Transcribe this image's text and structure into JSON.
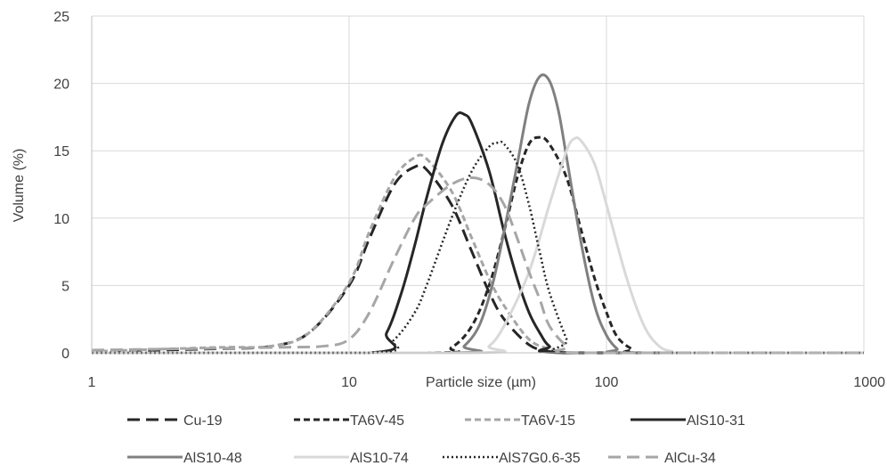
{
  "chart_data": {
    "type": "line",
    "title": "",
    "xlabel": "Particle size (µm)",
    "ylabel": "Volume (%)",
    "xscale": "log",
    "xlim": [
      1,
      1000
    ],
    "ylim": [
      0,
      25
    ],
    "xticks": [
      "1",
      "10",
      "100",
      "1000"
    ],
    "yticks": [
      "0",
      "5",
      "10",
      "15",
      "20",
      "25"
    ],
    "grid": true,
    "legend_position": "bottom",
    "series": [
      {
        "name": "Cu-19",
        "color": "#262626",
        "dash": "long-dash",
        "width": 3,
        "points": [
          [
            1,
            0.1
          ],
          [
            3,
            0.3
          ],
          [
            5,
            0.5
          ],
          [
            7,
            1.5
          ],
          [
            10,
            5
          ],
          [
            12,
            8.5
          ],
          [
            15,
            12.5
          ],
          [
            18,
            13.8
          ],
          [
            20,
            13.6
          ],
          [
            25,
            11
          ],
          [
            30,
            7.5
          ],
          [
            35,
            4.5
          ],
          [
            40,
            2.5
          ],
          [
            50,
            0.6
          ],
          [
            60,
            0.1
          ],
          [
            70,
            0
          ]
        ]
      },
      {
        "name": "TA6V-45",
        "color": "#262626",
        "dash": "dash",
        "width": 3,
        "points": [
          [
            1,
            0
          ],
          [
            20,
            0
          ],
          [
            25,
            0.4
          ],
          [
            30,
            2
          ],
          [
            35,
            5
          ],
          [
            40,
            9
          ],
          [
            45,
            13
          ],
          [
            50,
            15.5
          ],
          [
            55,
            16
          ],
          [
            60,
            15.5
          ],
          [
            70,
            13
          ],
          [
            80,
            9
          ],
          [
            90,
            5.5
          ],
          [
            100,
            3
          ],
          [
            110,
            1.2
          ],
          [
            125,
            0.3
          ],
          [
            140,
            0
          ],
          [
            1000,
            0
          ]
        ]
      },
      {
        "name": "TA6V-15",
        "color": "#a6a6a6",
        "dash": "dash",
        "width": 3,
        "points": [
          [
            1,
            0.1
          ],
          [
            3,
            0.4
          ],
          [
            5,
            0.5
          ],
          [
            7,
            1.5
          ],
          [
            10,
            5.2
          ],
          [
            12,
            9
          ],
          [
            15,
            13
          ],
          [
            18,
            14.5
          ],
          [
            20,
            14.4
          ],
          [
            25,
            12
          ],
          [
            30,
            8.5
          ],
          [
            35,
            5.5
          ],
          [
            40,
            3.5
          ],
          [
            50,
            1
          ],
          [
            60,
            0.3
          ],
          [
            70,
            0
          ]
        ]
      },
      {
        "name": "AlS10-31",
        "color": "#262626",
        "dash": "solid",
        "width": 3,
        "points": [
          [
            1,
            0
          ],
          [
            12,
            0
          ],
          [
            14,
            1.5
          ],
          [
            16,
            4.5
          ],
          [
            18,
            8
          ],
          [
            20,
            11.5
          ],
          [
            23,
            15.5
          ],
          [
            26,
            17.6
          ],
          [
            28,
            17.7
          ],
          [
            30,
            17
          ],
          [
            35,
            13.5
          ],
          [
            40,
            9
          ],
          [
            45,
            5.5
          ],
          [
            50,
            3
          ],
          [
            55,
            1.5
          ],
          [
            60,
            0.5
          ],
          [
            70,
            0
          ],
          [
            1000,
            0
          ]
        ]
      },
      {
        "name": "AlS10-48",
        "color": "#808080",
        "dash": "solid",
        "width": 3,
        "points": [
          [
            1,
            0
          ],
          [
            25,
            0
          ],
          [
            28,
            0.5
          ],
          [
            32,
            2
          ],
          [
            36,
            5
          ],
          [
            40,
            9
          ],
          [
            45,
            14
          ],
          [
            50,
            18.5
          ],
          [
            55,
            20.5
          ],
          [
            60,
            20.2
          ],
          [
            65,
            18
          ],
          [
            70,
            14.5
          ],
          [
            80,
            8
          ],
          [
            90,
            3.5
          ],
          [
            100,
            1.3
          ],
          [
            110,
            0.3
          ],
          [
            120,
            0
          ],
          [
            1000,
            0
          ]
        ]
      },
      {
        "name": "AlS10-74",
        "color": "#d9d9d9",
        "dash": "solid",
        "width": 3,
        "points": [
          [
            1,
            0
          ],
          [
            30,
            0
          ],
          [
            35,
            0.5
          ],
          [
            40,
            2
          ],
          [
            50,
            6
          ],
          [
            60,
            11
          ],
          [
            70,
            15
          ],
          [
            75,
            15.9
          ],
          [
            80,
            15.7
          ],
          [
            90,
            14
          ],
          [
            100,
            11
          ],
          [
            120,
            5.5
          ],
          [
            140,
            2
          ],
          [
            160,
            0.5
          ],
          [
            180,
            0.1
          ],
          [
            200,
            0
          ],
          [
            1000,
            0
          ]
        ]
      },
      {
        "name": "AlS7G0.6-35",
        "color": "#262626",
        "dash": "dot",
        "width": 2.5,
        "points": [
          [
            1,
            0
          ],
          [
            12,
            0
          ],
          [
            15,
            1
          ],
          [
            18,
            3
          ],
          [
            20,
            5
          ],
          [
            25,
            10
          ],
          [
            30,
            13.5
          ],
          [
            35,
            15.3
          ],
          [
            38,
            15.6
          ],
          [
            40,
            15.5
          ],
          [
            45,
            14
          ],
          [
            50,
            11
          ],
          [
            55,
            7.5
          ],
          [
            60,
            4.5
          ],
          [
            70,
            1
          ],
          [
            75,
            0
          ],
          [
            1000,
            0
          ]
        ]
      },
      {
        "name": "AlCu-34",
        "color": "#a6a6a6",
        "dash": "long-dash",
        "width": 3,
        "points": [
          [
            1,
            0.2
          ],
          [
            5,
            0.4
          ],
          [
            8,
            0.5
          ],
          [
            10,
            1
          ],
          [
            12,
            3
          ],
          [
            15,
            7
          ],
          [
            18,
            10
          ],
          [
            20,
            11
          ],
          [
            25,
            12.5
          ],
          [
            30,
            13
          ],
          [
            35,
            12.5
          ],
          [
            40,
            11
          ],
          [
            45,
            8.5
          ],
          [
            50,
            6
          ],
          [
            55,
            4
          ],
          [
            60,
            2
          ],
          [
            70,
            0.5
          ],
          [
            80,
            0
          ],
          [
            1000,
            0
          ]
        ]
      }
    ]
  }
}
